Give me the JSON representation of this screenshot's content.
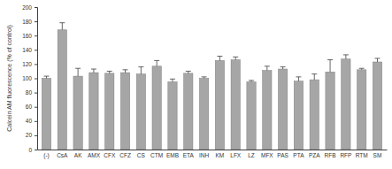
{
  "chart_data": {
    "type": "bar",
    "y_label": "Calcein AM fluorescence (% of control)",
    "categories": [
      "(-)",
      "CsA",
      "AK",
      "AMX",
      "CFX",
      "CFZ",
      "CS",
      "CTM",
      "EMB",
      "ETA",
      "INH",
      "KM",
      "LFX",
      "LZ",
      "MFX",
      "PAS",
      "PTA",
      "PZA",
      "RFB",
      "RFP",
      "RTM",
      "SM"
    ],
    "values": [
      100,
      168,
      103,
      108,
      107,
      108,
      106,
      117,
      95,
      107,
      100,
      125,
      126,
      95,
      111,
      113,
      96,
      98,
      109,
      127,
      112,
      123
    ],
    "errors": [
      3,
      10,
      11,
      5,
      3,
      4,
      10,
      8,
      4,
      3,
      2,
      6,
      4,
      2,
      6,
      3,
      6,
      8,
      17,
      6,
      2,
      5
    ],
    "color": "#a6a6a6",
    "ylim": [
      0,
      200
    ],
    "yticks": [
      0,
      20,
      40,
      60,
      80,
      100,
      120,
      140,
      160,
      180,
      200
    ],
    "grid": false
  }
}
